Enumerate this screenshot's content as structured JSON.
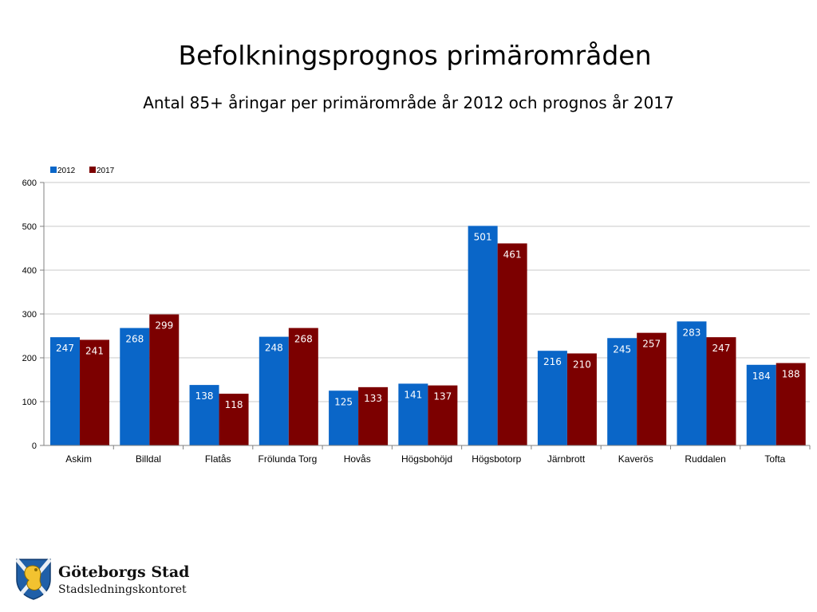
{
  "chart_data": {
    "type": "bar",
    "title": "Befolkningsprognos primärområden",
    "subtitle": "Antal 85+ åringar per primärområde år 2012 och prognos år 2017",
    "xlabel": "",
    "ylabel": "",
    "ylim": [
      0,
      600
    ],
    "yticks": [
      0,
      100,
      200,
      300,
      400,
      500,
      600
    ],
    "grid": true,
    "legend_position": "top-left",
    "categories": [
      "Askim",
      "Billdal",
      "Flatås",
      "Frölunda Torg",
      "Hovås",
      "Högsbohöjd",
      "Högsbotorp",
      "Järnbrott",
      "Kaverös",
      "Ruddalen",
      "Tofta"
    ],
    "series": [
      {
        "name": "2012",
        "color": "#0a66c8",
        "values": [
          247,
          268,
          138,
          248,
          125,
          141,
          501,
          216,
          245,
          283,
          184
        ]
      },
      {
        "name": "2017",
        "color": "#7c0000",
        "values": [
          241,
          299,
          118,
          268,
          133,
          137,
          461,
          210,
          257,
          247,
          188
        ]
      }
    ]
  },
  "logo": {
    "org": "Göteborgs Stad",
    "unit": "Stadsledningskontoret",
    "icon": "city-crest-icon"
  }
}
